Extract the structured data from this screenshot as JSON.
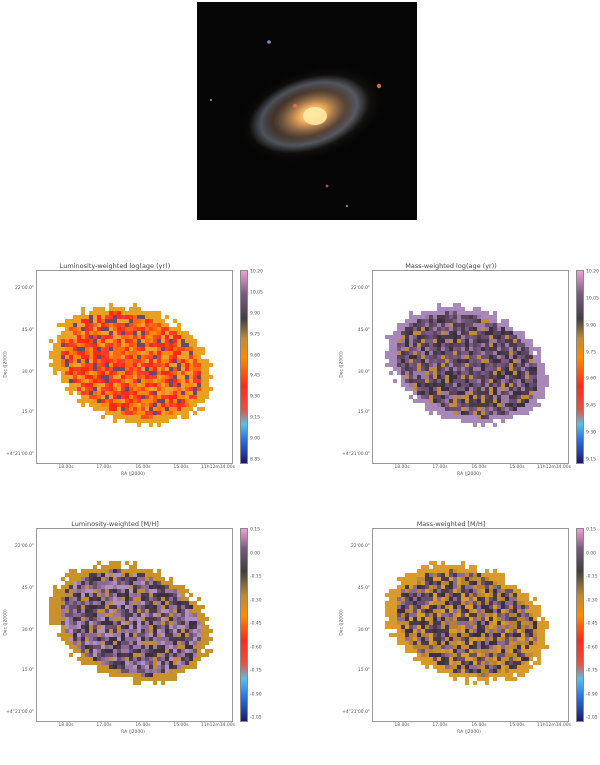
{
  "image": {
    "subject": "spiral galaxy photograph"
  },
  "axes": {
    "y_label": "Dec (J2000)",
    "x_label": "RA (J2000)",
    "y_ticks_left": [
      "22'00.0\"",
      "45.0\"",
      "30.0\"",
      "15.0\"",
      "+4°21'00.0\""
    ],
    "y_ticks_right": [
      "22'00.0\"",
      "45.0\"",
      "30.0\"",
      "15.0\"",
      "+4°21'00.0\""
    ],
    "x_ticks_left": [
      "18.00s",
      "17.00s",
      "16.00s",
      "15.00s",
      "11h12m14.00s"
    ],
    "x_ticks_right": [
      "18.00s",
      "17.00s",
      "16.00s",
      "15.00s",
      "11h12m14.00s"
    ]
  },
  "panels": [
    {
      "title": "Luminosity-weighted log(age (yr))",
      "colorbar": "age",
      "ticks": [
        "10.20",
        "10.05",
        "9.90",
        "9.75",
        "9.60",
        "9.45",
        "9.30",
        "9.15",
        "9.00",
        "8.85"
      ],
      "palette": [
        "#ff2a1a",
        "#ff4a1a",
        "#ff6a10",
        "#ff8a00",
        "#6a4a6a",
        "#ff3a2a",
        "#f0a030"
      ],
      "edge": "#e8a020"
    },
    {
      "title": "Mass-weighted log(age (yr))",
      "colorbar": "age",
      "ticks": [
        "10.20",
        "10.05",
        "9.90",
        "9.75",
        "9.60",
        "9.45",
        "9.30",
        "9.15"
      ],
      "palette": [
        "#6a5070",
        "#5a4460",
        "#4a3a4a",
        "#7a5a80",
        "#9a7aa0",
        "#c08a3a",
        "#3a3040"
      ],
      "edge": "#a888b8"
    },
    {
      "title": "Luminosity-weighted [M/H]",
      "colorbar": "met",
      "ticks": [
        "0.15",
        "0.00",
        "-0.15",
        "-0.30",
        "-0.45",
        "-0.60",
        "-0.75",
        "-0.90",
        "-1.05"
      ],
      "palette": [
        "#6a5070",
        "#8a6a90",
        "#b090c0",
        "#4a3a4a",
        "#c08a3a",
        "#9a7aa0",
        "#3a3040"
      ],
      "edge": "#c8922a"
    },
    {
      "title": "Mass-weighted [M/H]",
      "colorbar": "met",
      "ticks": [
        "0.15",
        "0.00",
        "-0.15",
        "-0.30",
        "-0.45",
        "-0.60",
        "-0.75",
        "-0.90",
        "-1.05"
      ],
      "palette": [
        "#c08a3a",
        "#d89a2a",
        "#6a5070",
        "#4a3a4a",
        "#8a6a90",
        "#b58030",
        "#3a3040"
      ],
      "edge": "#d89a2a"
    }
  ]
}
